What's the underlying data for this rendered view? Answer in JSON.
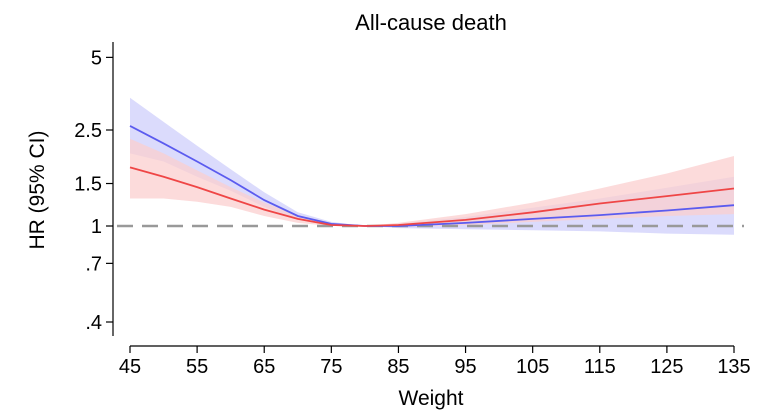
{
  "chart_data": {
    "type": "line",
    "title": "All-cause death",
    "xlabel": "Weight",
    "ylabel": "HR (95% CI)",
    "xlim": [
      45,
      135
    ],
    "xticks": [
      45,
      55,
      65,
      75,
      85,
      95,
      105,
      115,
      125,
      135
    ],
    "yscale": "log",
    "ylim": [
      0.36,
      5.3
    ],
    "yticks": [
      {
        "value": 0.4,
        "label": ".4"
      },
      {
        "value": 0.7,
        "label": ".7"
      },
      {
        "value": 1,
        "label": "1"
      },
      {
        "value": 1.5,
        "label": "1.5"
      },
      {
        "value": 2.5,
        "label": "2.5"
      },
      {
        "value": 5,
        "label": "5"
      }
    ],
    "reference_line": {
      "y": 1,
      "style": "dashed",
      "color": "#999999"
    },
    "grid": false,
    "series": [
      {
        "color": "#5b5bef",
        "band_color": "#cfcffb",
        "x": [
          45,
          50,
          55,
          60,
          65,
          70,
          75,
          80,
          85,
          95,
          105,
          115,
          125,
          135
        ],
        "y": [
          2.6,
          2.2,
          1.85,
          1.55,
          1.28,
          1.1,
          1.02,
          1.0,
          1.0,
          1.03,
          1.07,
          1.11,
          1.16,
          1.22
        ],
        "lower": [
          2.0,
          1.85,
          1.6,
          1.4,
          1.2,
          1.06,
          1.0,
          1.0,
          0.98,
          0.97,
          0.96,
          0.95,
          0.93,
          0.92
        ],
        "upper": [
          3.4,
          2.7,
          2.15,
          1.72,
          1.38,
          1.14,
          1.04,
          1.0,
          1.02,
          1.09,
          1.19,
          1.3,
          1.44,
          1.6
        ]
      },
      {
        "color": "#ef4646",
        "band_color": "#fbcfcf",
        "x": [
          45,
          50,
          55,
          60,
          65,
          70,
          75,
          80,
          85,
          95,
          105,
          115,
          125,
          135
        ],
        "y": [
          1.75,
          1.6,
          1.45,
          1.3,
          1.17,
          1.07,
          1.01,
          1.0,
          1.01,
          1.06,
          1.14,
          1.24,
          1.33,
          1.43
        ],
        "lower": [
          1.3,
          1.3,
          1.26,
          1.2,
          1.1,
          1.03,
          1.0,
          1.0,
          0.99,
          1.01,
          1.04,
          1.07,
          1.1,
          1.12
        ],
        "upper": [
          2.3,
          2.0,
          1.7,
          1.45,
          1.25,
          1.11,
          1.03,
          1.0,
          1.03,
          1.12,
          1.25,
          1.43,
          1.65,
          1.95
        ]
      }
    ]
  }
}
